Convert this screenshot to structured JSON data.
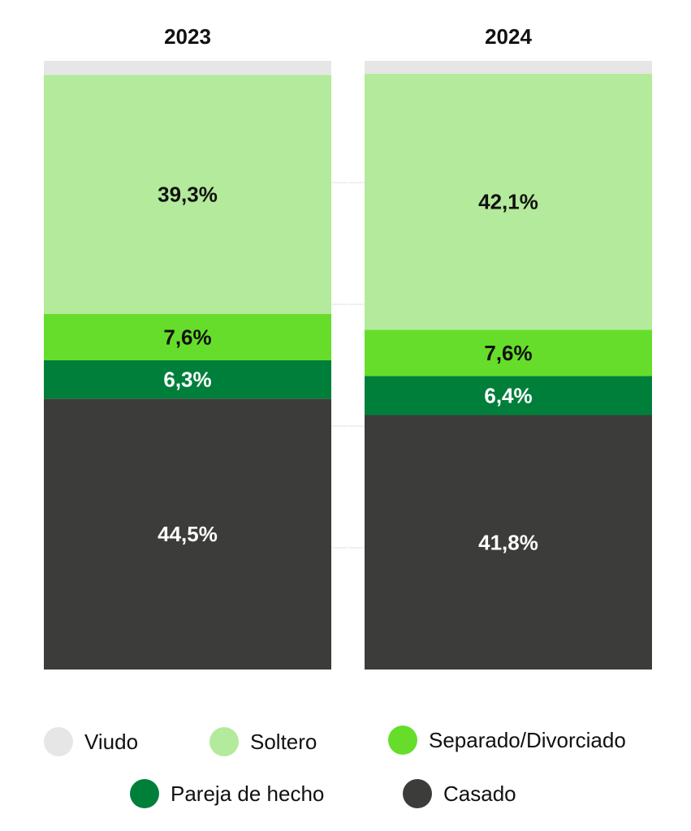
{
  "chart_data": {
    "type": "bar",
    "stacked": true,
    "percent_scale": true,
    "categories": [
      "2023",
      "2024"
    ],
    "series": [
      {
        "name": "Casado",
        "values": [
          44.5,
          41.8
        ],
        "labels": [
          "44,5%",
          "41,8%"
        ],
        "color": "#3c3c3b",
        "label_color": "#ffffff"
      },
      {
        "name": "Pareja de hecho",
        "values": [
          6.3,
          6.4
        ],
        "labels": [
          "6,3%",
          "6,4%"
        ],
        "color": "#007f3b",
        "label_color": "#ffffff"
      },
      {
        "name": "Separado/Divorciado",
        "values": [
          7.6,
          7.6
        ],
        "labels": [
          "7,6%",
          "7,6%"
        ],
        "color": "#66dd2b",
        "label_color": "#111111"
      },
      {
        "name": "Soltero",
        "values": [
          39.3,
          42.1
        ],
        "labels": [
          "39,3%",
          "42,1%"
        ],
        "color": "#b4ea9b",
        "label_color": "#111111"
      },
      {
        "name": "Viudo",
        "values": [
          2.3,
          2.1
        ],
        "labels": [
          "",
          ""
        ],
        "color": "#e6e6e6",
        "label_color": "#111111"
      }
    ],
    "ylim": [
      0,
      100
    ],
    "grid": false,
    "legend_position": "bottom"
  },
  "legend": [
    {
      "name": "Viudo",
      "color": "#e6e6e6"
    },
    {
      "name": "Soltero",
      "color": "#b4ea9b"
    },
    {
      "name": "Separado/Divorciado",
      "color": "#66dd2b"
    },
    {
      "name": "Pareja de hecho",
      "color": "#007f3b"
    },
    {
      "name": "Casado",
      "color": "#3c3c3b"
    }
  ]
}
